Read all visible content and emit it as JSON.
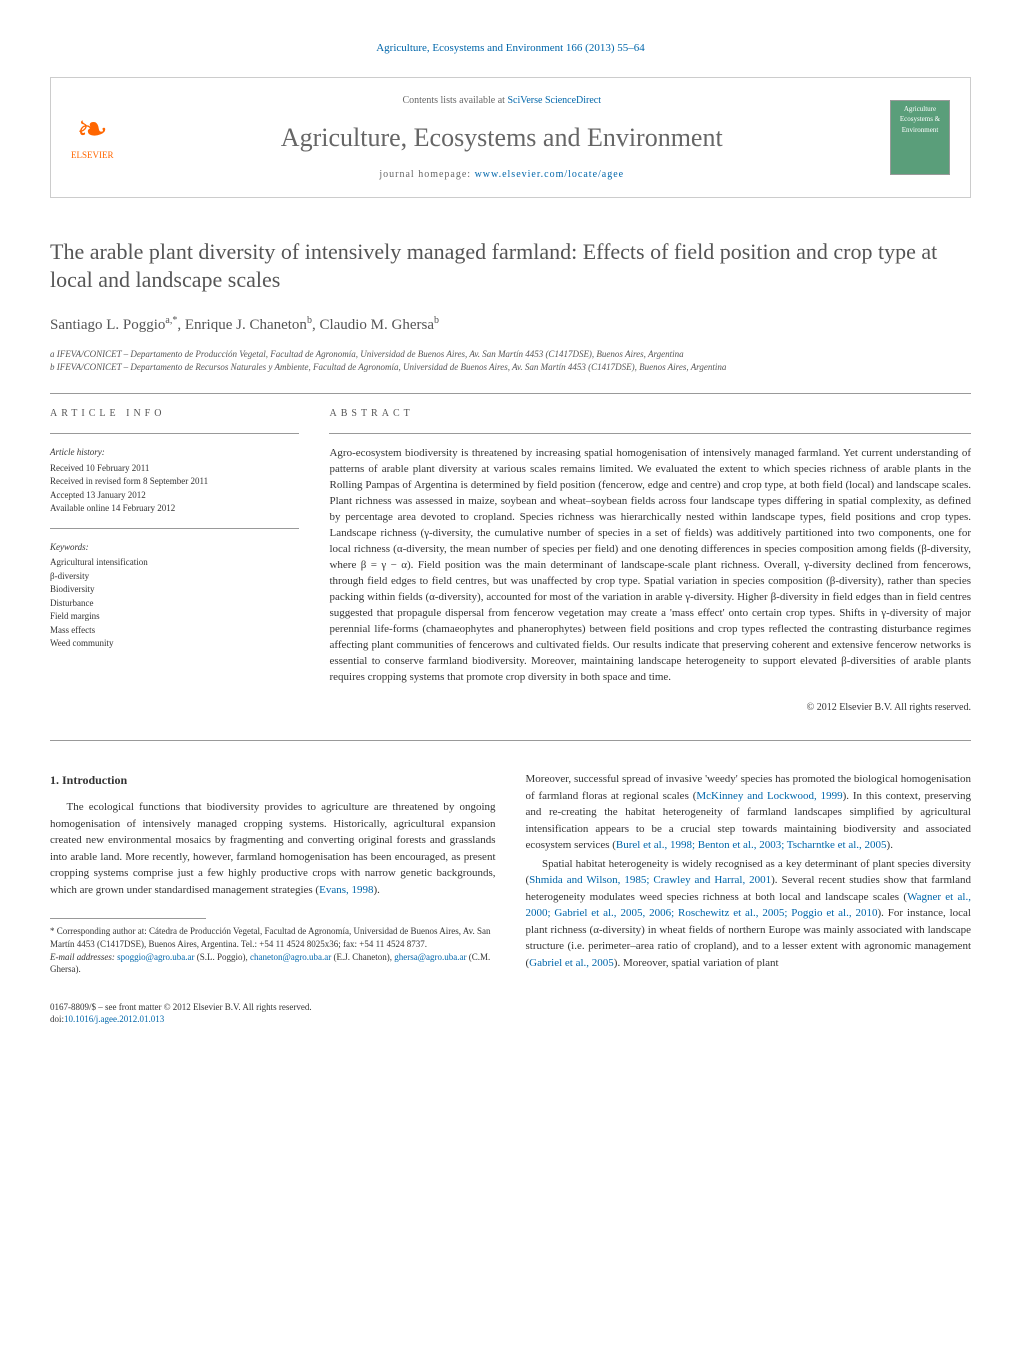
{
  "citation": "Agriculture, Ecosystems and Environment 166 (2013) 55–64",
  "header": {
    "contents_prefix": "Contents lists available at ",
    "contents_link": "SciVerse ScienceDirect",
    "journal_name": "Agriculture, Ecosystems and Environment",
    "homepage_prefix": "journal homepage: ",
    "homepage_url": "www.elsevier.com/locate/agee",
    "publisher": "ELSEVIER",
    "cover_text": "Agriculture Ecosystems & Environment"
  },
  "title": "The arable plant diversity of intensively managed farmland: Effects of field position and crop type at local and landscape scales",
  "authors_html": "Santiago L. Poggio<sup>a,*</sup>, Enrique J. Chaneton<sup>b</sup>, Claudio M. Ghersa<sup>b</sup>",
  "affiliations": [
    "a IFEVA/CONICET – Departamento de Producción Vegetal, Facultad de Agronomía, Universidad de Buenos Aires, Av. San Martín 4453 (C1417DSE), Buenos Aires, Argentina",
    "b IFEVA/CONICET – Departamento de Recursos Naturales y Ambiente, Facultad de Agronomía, Universidad de Buenos Aires, Av. San Martín 4453 (C1417DSE), Buenos Aires, Argentina"
  ],
  "article_info": {
    "heading": "article info",
    "history_head": "Article history:",
    "history": [
      "Received 10 February 2011",
      "Received in revised form 8 September 2011",
      "Accepted 13 January 2012",
      "Available online 14 February 2012"
    ],
    "keywords_head": "Keywords:",
    "keywords": [
      "Agricultural intensification",
      "β-diversity",
      "Biodiversity",
      "Disturbance",
      "Field margins",
      "Mass effects",
      "Weed community"
    ]
  },
  "abstract": {
    "heading": "abstract",
    "text": "Agro-ecosystem biodiversity is threatened by increasing spatial homogenisation of intensively managed farmland. Yet current understanding of patterns of arable plant diversity at various scales remains limited. We evaluated the extent to which species richness of arable plants in the Rolling Pampas of Argentina is determined by field position (fencerow, edge and centre) and crop type, at both field (local) and landscape scales. Plant richness was assessed in maize, soybean and wheat–soybean fields across four landscape types differing in spatial complexity, as defined by percentage area devoted to cropland. Species richness was hierarchically nested within landscape types, field positions and crop types. Landscape richness (γ-diversity, the cumulative number of species in a set of fields) was additively partitioned into two components, one for local richness (α-diversity, the mean number of species per field) and one denoting differences in species composition among fields (β-diversity, where β = γ − α). Field position was the main determinant of landscape-scale plant richness. Overall, γ-diversity declined from fencerows, through field edges to field centres, but was unaffected by crop type. Spatial variation in species composition (β-diversity), rather than species packing within fields (α-diversity), accounted for most of the variation in arable γ-diversity. Higher β-diversity in field edges than in field centres suggested that propagule dispersal from fencerow vegetation may create a 'mass effect' onto certain crop types. Shifts in γ-diversity of major perennial life-forms (chamaeophytes and phanerophytes) between field positions and crop types reflected the contrasting disturbance regimes affecting plant communities of fencerows and cultivated fields. Our results indicate that preserving coherent and extensive fencerow networks is essential to conserve farmland biodiversity. Moreover, maintaining landscape heterogeneity to support elevated β-diversities of arable plants requires cropping systems that promote crop diversity in both space and time.",
    "copyright": "© 2012 Elsevier B.V. All rights reserved."
  },
  "body": {
    "intro_heading": "1. Introduction",
    "left_para": "The ecological functions that biodiversity provides to agriculture are threatened by ongoing homogenisation of intensively managed cropping systems. Historically, agricultural expansion created new environmental mosaics by fragmenting and converting original forests and grasslands into arable land. More recently, however, farmland homogenisation has been encouraged, as present cropping systems comprise just a few highly productive crops with narrow genetic backgrounds, which are grown under standardised management strategies (",
    "left_ref1": "Evans, 1998",
    "left_tail": ").",
    "right_p1_a": "Moreover, successful spread of invasive 'weedy' species has promoted the biological homogenisation of farmland floras at regional scales (",
    "right_ref1": "McKinney and Lockwood, 1999",
    "right_p1_b": "). In this context, preserving and re-creating the habitat heterogeneity of farmland landscapes simplified by agricultural intensification appears to be a crucial step towards maintaining biodiversity and associated ecosystem services (",
    "right_ref2": "Burel et al., 1998; Benton et al., 2003; Tscharntke et al., 2005",
    "right_p1_c": ").",
    "right_p2_a": "Spatial habitat heterogeneity is widely recognised as a key determinant of plant species diversity (",
    "right_ref3": "Shmida and Wilson, 1985; Crawley and Harral, 2001",
    "right_p2_b": "). Several recent studies show that farmland heterogeneity modulates weed species richness at both local and landscape scales (",
    "right_ref4": "Wagner et al., 2000; Gabriel et al., 2005, 2006; Roschewitz et al., 2005; Poggio et al., 2010",
    "right_p2_c": "). For instance, local plant richness (α-diversity) in wheat fields of northern Europe was mainly associated with landscape structure (i.e. perimeter–area ratio of cropland), and to a lesser extent with agronomic management (",
    "right_ref5": "Gabriel et al., 2005",
    "right_p2_d": "). Moreover, spatial variation of plant"
  },
  "footnotes": {
    "corresponding": "* Corresponding author at: Cátedra de Producción Vegetal, Facultad de Agronomía, Universidad de Buenos Aires, Av. San Martín 4453 (C1417DSE), Buenos Aires, Argentina. Tel.: +54 11 4524 8025x36; fax: +54 11 4524 8737.",
    "email_label": "E-mail addresses: ",
    "email1": "spoggio@agro.uba.ar",
    "email1_who": " (S.L. Poggio), ",
    "email2": "chaneton@agro.uba.ar",
    "email2_who": " (E.J. Chaneton), ",
    "email3": "ghersa@agro.uba.ar",
    "email3_who": " (C.M. Ghersa)."
  },
  "footer": {
    "issn_line": "0167-8809/$ – see front matter © 2012 Elsevier B.V. All rights reserved.",
    "doi_prefix": "doi:",
    "doi": "10.1016/j.agee.2012.01.013"
  },
  "colors": {
    "link": "#0066aa",
    "text": "#333333",
    "heading": "#555555",
    "elsevier": "#ff6600",
    "cover_bg": "#5a9e7a"
  }
}
